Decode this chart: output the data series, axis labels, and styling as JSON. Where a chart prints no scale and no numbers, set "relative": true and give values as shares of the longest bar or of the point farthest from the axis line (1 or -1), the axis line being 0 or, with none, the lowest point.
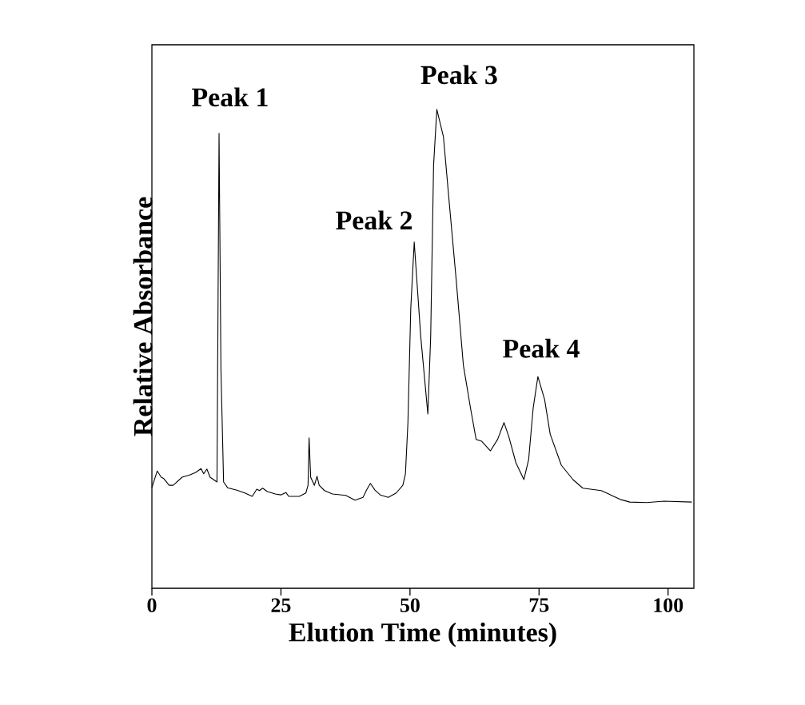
{
  "chart_data": {
    "type": "line",
    "relative": true,
    "xlabel": "Elution Time (minutes)",
    "ylabel": "Relative Absorbance",
    "xlim": [
      0,
      105
    ],
    "xticks": [
      0,
      25,
      50,
      75,
      100
    ],
    "grid": false,
    "marker": "none",
    "line_style": "solid",
    "annotations": [
      {
        "text": "Peak 1",
        "x": 13.0,
        "y": 0.95
      },
      {
        "text": "Peak 2",
        "x": 50.8,
        "y": 0.723
      },
      {
        "text": "Peak 3",
        "x": 55.2,
        "y": 1.0
      },
      {
        "text": "Peak 4",
        "x": 74.8,
        "y": 0.442
      }
    ],
    "series": [
      {
        "color": "#000000",
        "x": [
          0,
          1.03,
          1.81,
          2.31,
          3.35,
          4.12,
          5.86,
          7.41,
          8.49,
          9.52,
          10.03,
          10.65,
          11.27,
          12.61,
          13.01,
          13.38,
          13.89,
          14.66,
          16.47,
          18.01,
          19.44,
          20.32,
          20.83,
          21.45,
          22.38,
          23.92,
          24.95,
          25.97,
          26.5,
          28.55,
          29.83,
          30.25,
          30.45,
          30.76,
          31.48,
          31.99,
          32.41,
          33.44,
          34.98,
          37.55,
          39.35,
          40.9,
          41.67,
          42.33,
          43.21,
          44.24,
          45.79,
          47.33,
          48.61,
          49.12,
          49.6,
          50.15,
          50.82,
          52.08,
          53.46,
          54.01,
          54.57,
          55.2,
          56.48,
          57.56,
          58.95,
          60.34,
          61.73,
          62.81,
          63.89,
          65.59,
          66.98,
          68.21,
          69.14,
          70.52,
          72.07,
          72.99,
          73.86,
          74.78,
          76.08,
          77.16,
          79.32,
          81.57,
          83.49,
          87.04,
          90.9,
          92.59,
          95.83,
          99.23,
          104.6
        ],
        "values": [
          0.21,
          0.245,
          0.232,
          0.229,
          0.215,
          0.215,
          0.232,
          0.237,
          0.242,
          0.25,
          0.239,
          0.249,
          0.232,
          0.222,
          0.95,
          0.456,
          0.222,
          0.21,
          0.205,
          0.199,
          0.192,
          0.207,
          0.204,
          0.209,
          0.202,
          0.197,
          0.195,
          0.2,
          0.192,
          0.192,
          0.199,
          0.215,
          0.314,
          0.232,
          0.215,
          0.234,
          0.215,
          0.204,
          0.197,
          0.194,
          0.184,
          0.19,
          0.207,
          0.219,
          0.205,
          0.195,
          0.19,
          0.199,
          0.215,
          0.239,
          0.346,
          0.584,
          0.723,
          0.526,
          0.364,
          0.526,
          0.883,
          1.0,
          0.943,
          0.811,
          0.644,
          0.466,
          0.376,
          0.311,
          0.307,
          0.287,
          0.311,
          0.346,
          0.317,
          0.262,
          0.227,
          0.269,
          0.376,
          0.442,
          0.394,
          0.322,
          0.257,
          0.227,
          0.209,
          0.204,
          0.185,
          0.18,
          0.179,
          0.182,
          0.18
        ]
      }
    ]
  }
}
